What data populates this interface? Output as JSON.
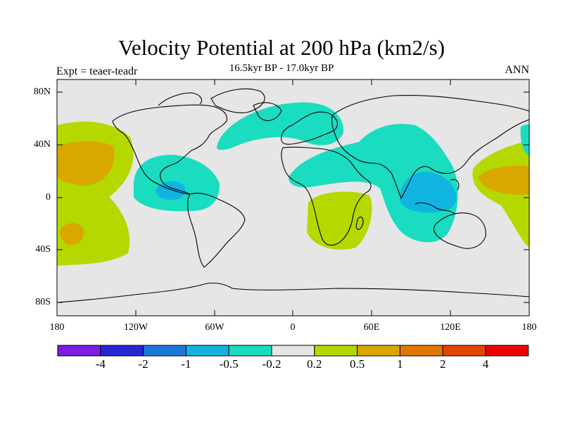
{
  "title": "Velocity Potential at 200 hPa (km2/s)",
  "subtitle": "16.5kyr BP - 17.0kyr BP",
  "left_label": "Expt = teaer-teadr",
  "right_label": "ANN",
  "lat_ticks": [
    "80N",
    "40N",
    "0",
    "40S",
    "80S"
  ],
  "lon_ticks": [
    "180",
    "120W",
    "60W",
    "0",
    "60E",
    "120E",
    "180"
  ],
  "colorbar": {
    "labels": [
      "-4",
      "-2",
      "-1",
      "-0.5",
      "-0.2",
      "0.2",
      "0.5",
      "1",
      "2",
      "4"
    ],
    "colors": [
      "#7a1ee0",
      "#2626d6",
      "#1e78d8",
      "#10b4e0",
      "#19dcc0",
      "#e6e6e6",
      "#b4d800",
      "#d8a800",
      "#e07800",
      "#e04800",
      "#f00000"
    ]
  },
  "map_colors": {
    "ocean_land_background": "#e6e6e6",
    "negative_weak": "#19dcc0",
    "negative_mid": "#10b4e0",
    "positive_weak": "#b4d800",
    "positive_mid": "#d8a800"
  }
}
